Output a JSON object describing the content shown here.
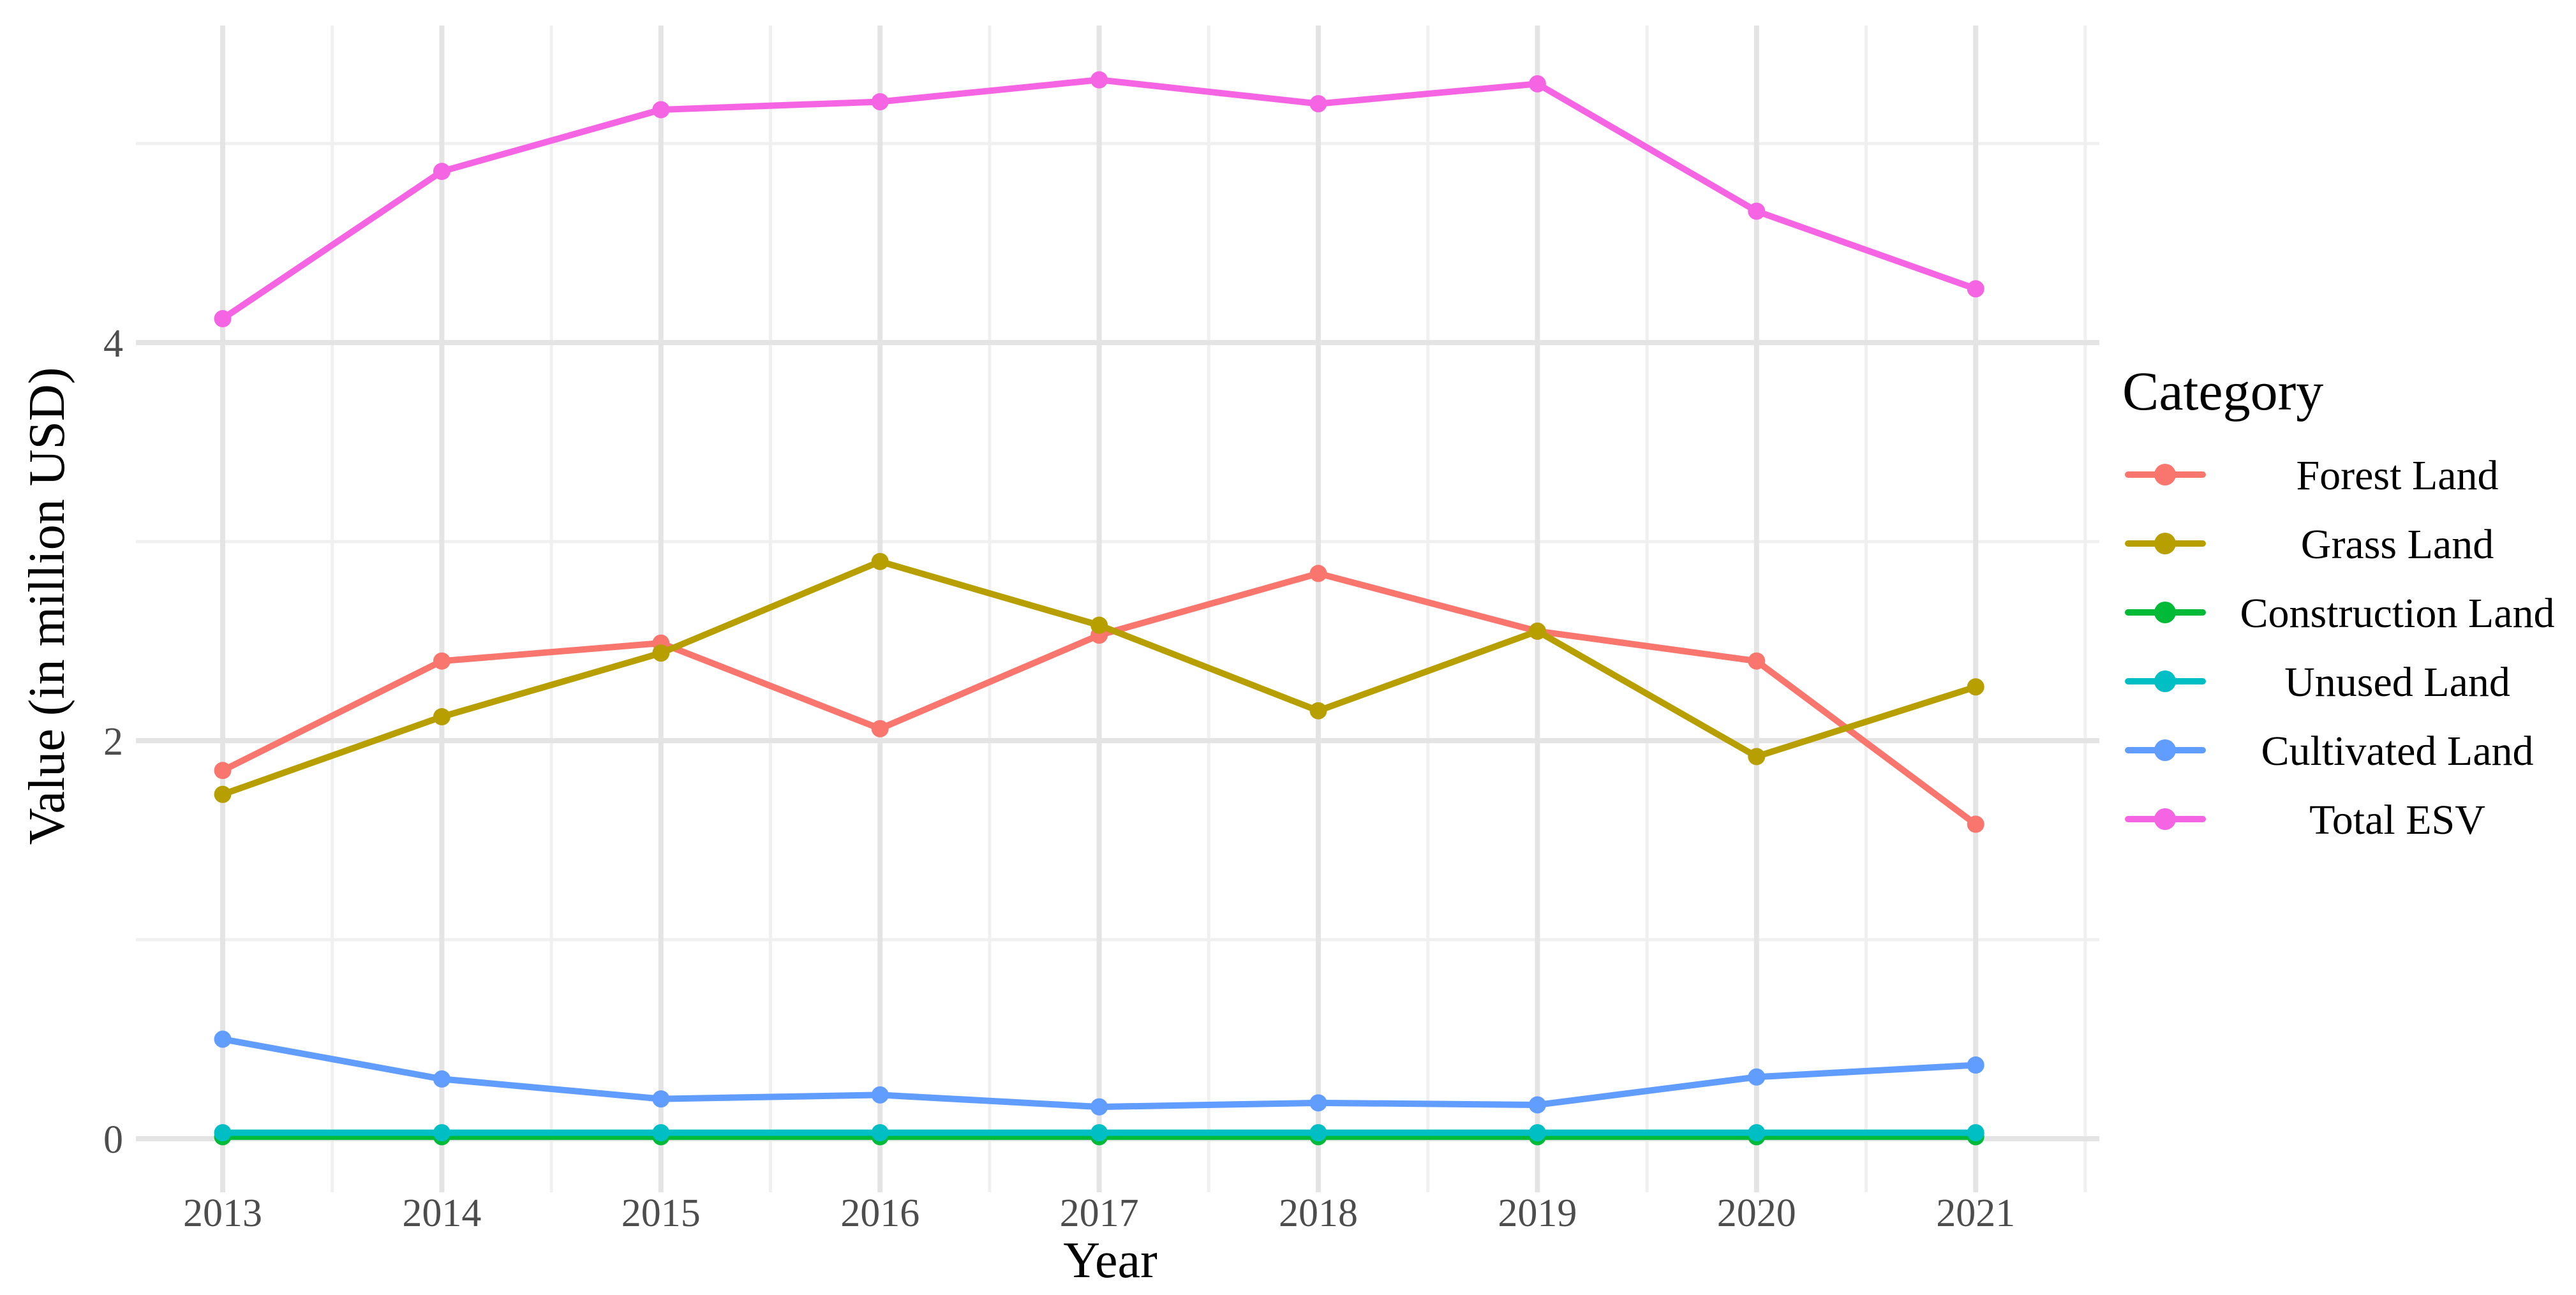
{
  "chart_data": {
    "type": "line",
    "title": "",
    "xlabel": "Year",
    "ylabel": "Value (in million USD)",
    "legend_title": "Category",
    "legend_position": "right",
    "grid": true,
    "categories": [
      "2013",
      "2014",
      "2015",
      "2016",
      "2017",
      "2018",
      "2019",
      "2020",
      "2021"
    ],
    "y_ticks": [
      0,
      2,
      4
    ],
    "y_minor_ticks": [
      1,
      3,
      5
    ],
    "ylim": [
      0,
      5.6
    ],
    "series": [
      {
        "name": "Forest Land",
        "color": "#F8766D",
        "values": [
          1.85,
          2.4,
          2.49,
          2.06,
          2.53,
          2.84,
          2.55,
          2.4,
          1.58
        ]
      },
      {
        "name": "Grass Land",
        "color": "#B79F00",
        "values": [
          1.73,
          2.12,
          2.44,
          2.9,
          2.58,
          2.15,
          2.55,
          1.92,
          2.27
        ]
      },
      {
        "name": "Construction Land",
        "color": "#00BA38",
        "values": [
          0.01,
          0.01,
          0.01,
          0.01,
          0.01,
          0.01,
          0.01,
          0.01,
          0.01
        ]
      },
      {
        "name": "Unused Land",
        "color": "#00BFC4",
        "values": [
          0.03,
          0.03,
          0.03,
          0.03,
          0.03,
          0.03,
          0.03,
          0.03,
          0.03
        ]
      },
      {
        "name": "Cultivated Land",
        "color": "#619CFF",
        "values": [
          0.5,
          0.3,
          0.2,
          0.22,
          0.16,
          0.18,
          0.17,
          0.31,
          0.37
        ]
      },
      {
        "name": "Total ESV",
        "color": "#F564E3",
        "values": [
          4.12,
          4.86,
          5.17,
          5.21,
          5.32,
          5.2,
          5.3,
          4.66,
          4.27
        ]
      }
    ],
    "style": {
      "tick_label_color": "#4d4d4d",
      "title_color": "#000000",
      "grid_major_color": "#e4e4e4",
      "grid_minor_color": "#f0f0f0",
      "background": "#ffffff"
    }
  }
}
